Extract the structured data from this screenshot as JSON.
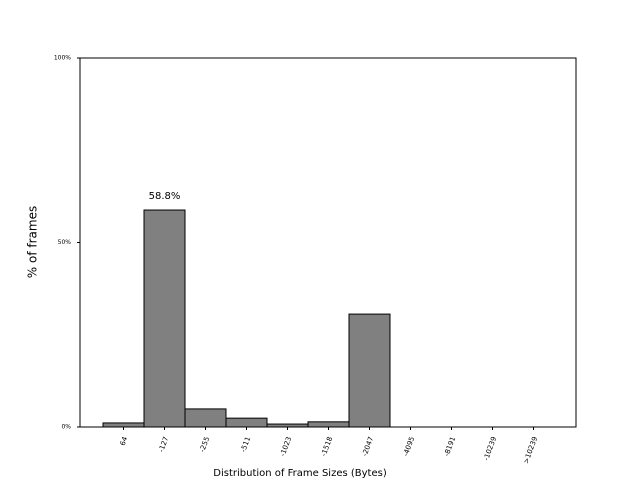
{
  "chart_data": {
    "type": "bar",
    "x_label": "Distribution of Frame Sizes (Bytes)",
    "y_label": "% of frames",
    "categories": [
      "64",
      "-127",
      "-255",
      "-511",
      "-1023",
      "-1518",
      "-2047",
      "-4095",
      "-8191",
      "-10239",
      ">10239"
    ],
    "values": [
      1.1,
      58.8,
      4.9,
      2.4,
      0.8,
      1.4,
      30.6,
      0,
      0,
      0,
      0
    ],
    "value_labels": [
      null,
      "58.8%",
      null,
      null,
      null,
      null,
      null,
      null,
      null,
      null,
      null
    ],
    "color": "#808080",
    "ylim": [
      0,
      100
    ],
    "yticks": [
      {
        "value": 0,
        "label": "0%"
      },
      {
        "value": 50,
        "label": "50%"
      },
      {
        "value": 100,
        "label": "100%"
      }
    ],
    "grid": false
  }
}
